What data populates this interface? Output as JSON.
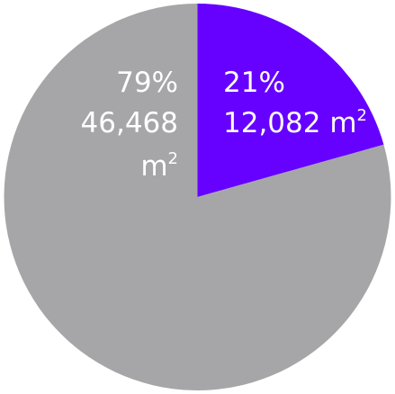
{
  "chart_data": {
    "type": "pie",
    "title": "",
    "slices": [
      {
        "percent_label": "21%",
        "value": 12082,
        "value_label": "12,082 m",
        "unit_sup": "2",
        "color": "#6600ff"
      },
      {
        "percent_label": "79%",
        "value": 46468,
        "value_label": "46,468",
        "unit_label": "m",
        "unit_sup": "2",
        "color": "#a6a6a8"
      }
    ],
    "start_angle_deg": 0,
    "direction": "clockwise",
    "label_color": "#ffffff",
    "legend": "none"
  }
}
